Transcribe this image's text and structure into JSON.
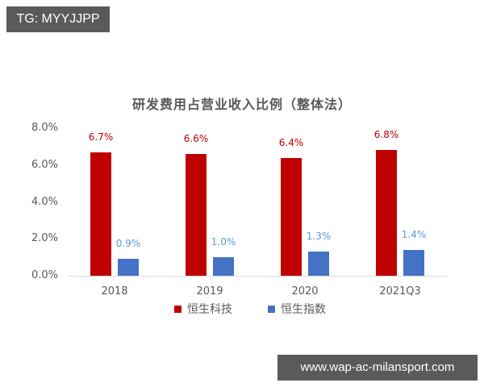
{
  "overlays": {
    "top_tag": "TG: MYYJJPP",
    "bottom_watermark": "www.wap-ac-milansport.com"
  },
  "chart": {
    "title": "研发费用占营业收入比例（整体法）",
    "y_ticks": [
      "8.0%",
      "6.0%",
      "4.0%",
      "2.0%",
      "0.0%"
    ],
    "categories": [
      "2018",
      "2019",
      "2020",
      "2021Q3"
    ],
    "series": [
      {
        "name": "恒生科技",
        "color": "#c00000",
        "label_color": "#c00000",
        "labels": [
          "6.7%",
          "6.6%",
          "6.4%",
          "6.8%"
        ]
      },
      {
        "name": "恒生指数",
        "color": "#4472c4",
        "label_color": "#5b9bd5",
        "labels": [
          "0.9%",
          "1.0%",
          "1.3%",
          "1.4%"
        ]
      }
    ],
    "legend": [
      "恒生科技",
      "恒生指数"
    ]
  },
  "chart_data": {
    "type": "bar",
    "title": "研发费用占营业收入比例（整体法）",
    "categories": [
      "2018",
      "2019",
      "2020",
      "2021Q3"
    ],
    "series": [
      {
        "name": "恒生科技",
        "values": [
          6.7,
          6.6,
          6.4,
          6.8
        ],
        "color": "#c00000"
      },
      {
        "name": "恒生指数",
        "values": [
          0.9,
          1.0,
          1.3,
          1.4
        ],
        "color": "#4472c4"
      }
    ],
    "xlabel": "",
    "ylabel": "",
    "y_tick_labels": [
      "0.0%",
      "2.0%",
      "4.0%",
      "6.0%",
      "8.0%"
    ],
    "ylim": [
      0,
      8
    ],
    "y_unit": "%",
    "grid": false,
    "data_labels": true,
    "legend_position": "bottom"
  }
}
